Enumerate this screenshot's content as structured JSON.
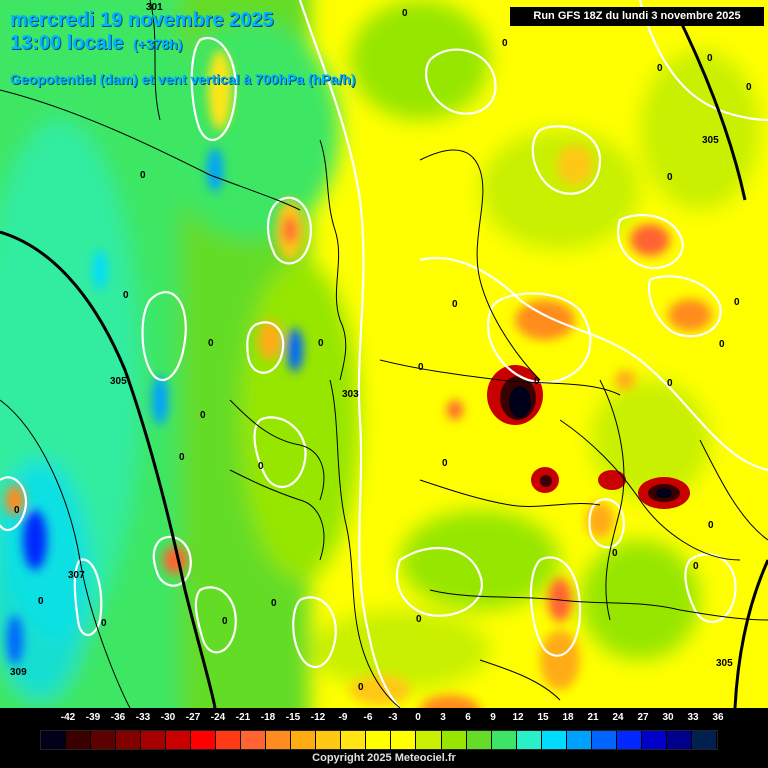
{
  "header": {
    "date_line": "mercredi 19 novembre 2025",
    "time_line": "13:00 locale",
    "lead_time": "(+378h)",
    "parameter_line": "Geopotentiel (dam) et vent vertical à 700hPa (hPa/h)",
    "run_label": "Run GFS 18Z du lundi 3 novembre 2025"
  },
  "isoline_labels": [
    "301",
    "305",
    "303",
    "305",
    "307",
    "309",
    "305"
  ],
  "zero_labels": [
    "0",
    "0",
    "0",
    "0",
    "0",
    "0",
    "0",
    "0",
    "0",
    "0",
    "0",
    "0",
    "0",
    "0",
    "0",
    "0",
    "0",
    "0",
    "0",
    "0",
    "0",
    "0",
    "0",
    "0",
    "0",
    "0",
    "0",
    "0",
    "0",
    "0"
  ],
  "legend": {
    "ticks": [
      "-42",
      "-39",
      "-36",
      "-33",
      "-30",
      "-27",
      "-24",
      "-21",
      "-18",
      "-15",
      "-12",
      "-9",
      "-6",
      "-3",
      "0",
      "3",
      "6",
      "9",
      "12",
      "15",
      "18",
      "21",
      "24",
      "27",
      "30",
      "33",
      "36"
    ],
    "colors": [
      "#000018",
      "#3a0000",
      "#5e0000",
      "#820000",
      "#a60000",
      "#c80000",
      "#ff0000",
      "#ff3a14",
      "#ff6432",
      "#ff8c1e",
      "#ffac14",
      "#ffc814",
      "#ffe614",
      "#ffff00",
      "#ffff00",
      "#c8f000",
      "#96e600",
      "#64dc28",
      "#3ce664",
      "#28f0c8",
      "#00dcff",
      "#00a0ff",
      "#0064ff",
      "#0028ff",
      "#0000c8",
      "#00008c",
      "#002050"
    ]
  },
  "copyright": "Copyright 2025 Meteociel.fr"
}
